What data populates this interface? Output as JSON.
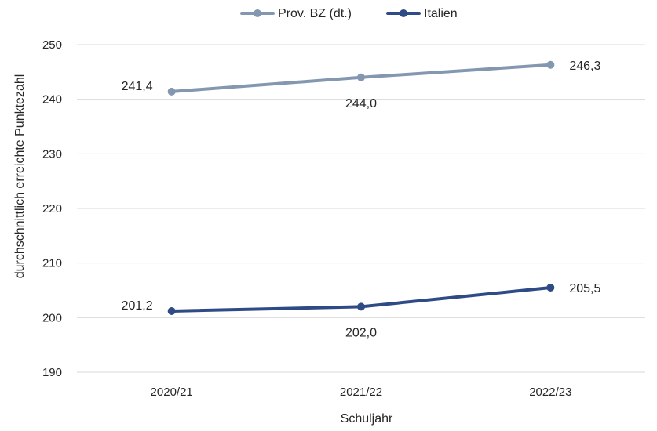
{
  "chart_data": {
    "type": "line",
    "title": "",
    "xlabel": "Schuljahr",
    "ylabel": "durchschnittlich erreichte Punktezahl",
    "categories": [
      "2020/21",
      "2021/22",
      "2022/23"
    ],
    "ylim": [
      190,
      250
    ],
    "yticks": [
      190,
      200,
      210,
      220,
      230,
      240,
      250
    ],
    "grid": true,
    "legend_position": "top-center",
    "series": [
      {
        "name": "Prov. BZ (dt.)",
        "color": "#8497b0",
        "values": [
          241.4,
          244.0,
          246.3
        ],
        "labels": [
          "241,4",
          "244,0",
          "246,3"
        ]
      },
      {
        "name": "Italien",
        "color": "#2f4b86",
        "values": [
          201.2,
          202.0,
          205.5
        ],
        "labels": [
          "201,2",
          "202,0",
          "205,5"
        ]
      }
    ]
  }
}
